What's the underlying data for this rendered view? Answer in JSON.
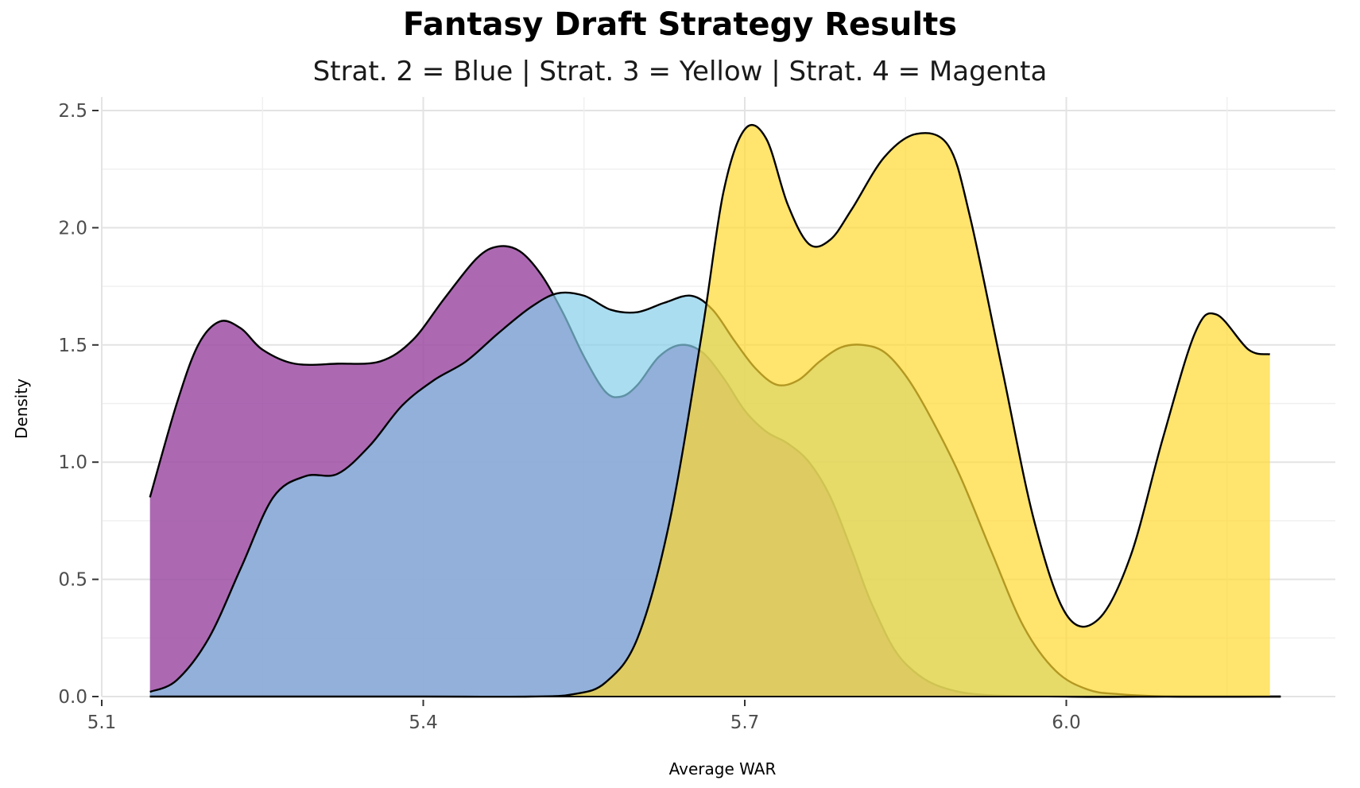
{
  "chart_data": {
    "type": "area",
    "title": "Fantasy Draft Strategy Results",
    "subtitle": "Strat. 2 = Blue | Strat. 3 = Yellow | Strat. 4 = Magenta",
    "xlabel": "Average WAR",
    "ylabel": "Density",
    "xlim": [
      5.1,
      6.22
    ],
    "ylim": [
      0,
      2.5
    ],
    "xticks": [
      "5.1",
      "5.4",
      "5.7",
      "6.0"
    ],
    "yticks": [
      "0.0",
      "0.5",
      "1.0",
      "1.5",
      "2.0",
      "2.5"
    ],
    "grid": true,
    "legend": "none",
    "series": [
      {
        "color": "#9E4FA5",
        "opacity": 0.85,
        "x": [
          5.145,
          5.17,
          5.19,
          5.21,
          5.23,
          5.25,
          5.28,
          5.32,
          5.36,
          5.39,
          5.42,
          5.45,
          5.47,
          5.49,
          5.51,
          5.53,
          5.55,
          5.57,
          5.585,
          5.6,
          5.62,
          5.64,
          5.66,
          5.68,
          5.7,
          5.72,
          5.74,
          5.76,
          5.78,
          5.8,
          5.82,
          5.85,
          5.9,
          6.0,
          6.1,
          6.2
        ],
        "y": [
          0.85,
          1.25,
          1.5,
          1.6,
          1.57,
          1.48,
          1.42,
          1.42,
          1.43,
          1.52,
          1.7,
          1.87,
          1.92,
          1.9,
          1.8,
          1.64,
          1.45,
          1.3,
          1.28,
          1.33,
          1.45,
          1.5,
          1.47,
          1.36,
          1.22,
          1.13,
          1.08,
          1.0,
          0.85,
          0.62,
          0.38,
          0.14,
          0.02,
          0.0,
          0.0,
          0.0
        ]
      },
      {
        "color": "#87CEEB",
        "opacity": 0.7,
        "x": [
          5.145,
          5.17,
          5.2,
          5.23,
          5.26,
          5.29,
          5.32,
          5.35,
          5.38,
          5.41,
          5.44,
          5.47,
          5.5,
          5.525,
          5.55,
          5.575,
          5.6,
          5.625,
          5.65,
          5.67,
          5.69,
          5.71,
          5.73,
          5.75,
          5.77,
          5.79,
          5.81,
          5.83,
          5.85,
          5.87,
          5.9,
          5.93,
          5.96,
          5.99,
          6.02,
          6.05,
          6.1,
          6.2
        ],
        "y": [
          0.02,
          0.07,
          0.25,
          0.55,
          0.85,
          0.94,
          0.95,
          1.07,
          1.24,
          1.35,
          1.43,
          1.55,
          1.66,
          1.72,
          1.71,
          1.65,
          1.64,
          1.68,
          1.71,
          1.65,
          1.52,
          1.4,
          1.33,
          1.35,
          1.43,
          1.49,
          1.5,
          1.47,
          1.37,
          1.22,
          0.95,
          0.62,
          0.3,
          0.11,
          0.03,
          0.01,
          0.0,
          0.0
        ]
      },
      {
        "color": "#FFD92F",
        "opacity": 0.7,
        "x": [
          5.145,
          5.4,
          5.5,
          5.54,
          5.57,
          5.6,
          5.63,
          5.66,
          5.68,
          5.7,
          5.72,
          5.74,
          5.76,
          5.78,
          5.8,
          5.83,
          5.86,
          5.89,
          5.91,
          5.94,
          5.97,
          6.0,
          6.03,
          6.06,
          6.09,
          6.12,
          6.14,
          6.17,
          6.19
        ],
        "y": [
          0.0,
          0.0,
          0.0,
          0.01,
          0.06,
          0.25,
          0.75,
          1.55,
          2.15,
          2.42,
          2.38,
          2.1,
          1.93,
          1.95,
          2.08,
          2.3,
          2.4,
          2.35,
          2.05,
          1.4,
          0.75,
          0.35,
          0.33,
          0.6,
          1.1,
          1.55,
          1.63,
          1.48,
          1.46
        ]
      }
    ]
  }
}
